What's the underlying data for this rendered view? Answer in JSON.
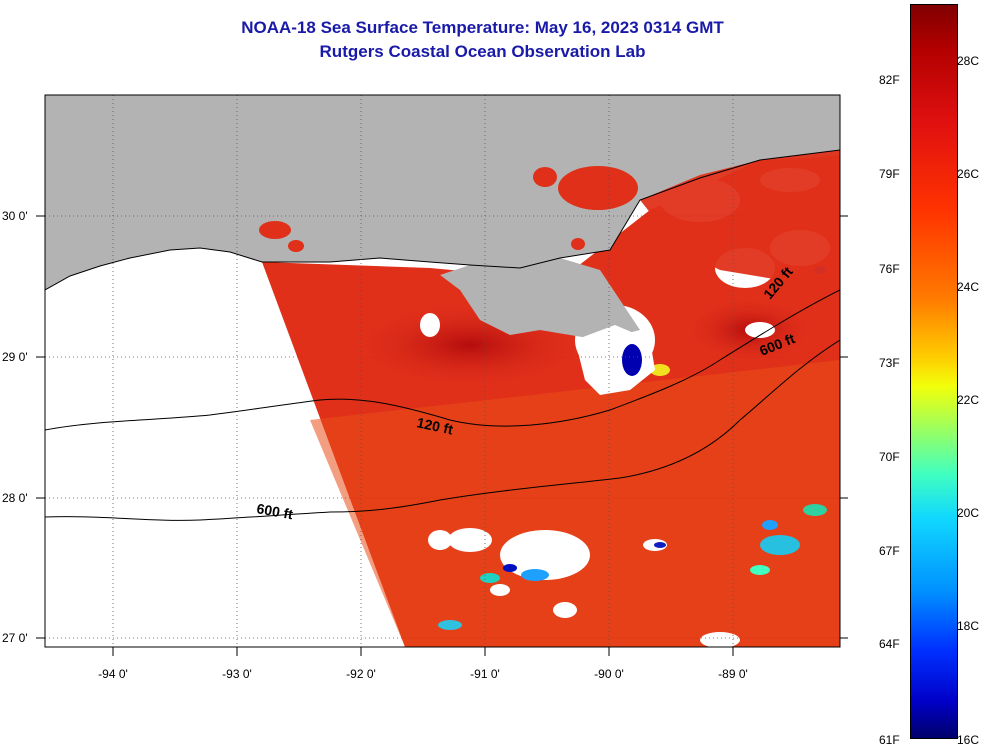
{
  "title": {
    "line1": "NOAA-18 Sea Surface Temperature:  May 16, 2023 0314 GMT",
    "line2": "Rutgers Coastal Ocean Observation Lab"
  },
  "map": {
    "lon_labels": [
      "-94 0'",
      "-93 0'",
      "-92 0'",
      "-91 0'",
      "-90 0'",
      "-89 0'"
    ],
    "lat_labels": [
      "30 0'",
      "29 0'",
      "28 0'",
      "27 0'"
    ],
    "contours": [
      "120 ft",
      "600 ft",
      "600 ft",
      "120 ft"
    ],
    "colors": {
      "land": "#b3b3b3",
      "water_warm": "#e0301a",
      "cloud": "#ffffff"
    }
  },
  "colorbar": {
    "fahrenheit": [
      "82F",
      "79F",
      "76F",
      "73F",
      "70F",
      "67F",
      "64F",
      "61F"
    ],
    "celsius": [
      "28C",
      "26C",
      "24C",
      "22C",
      "20C",
      "18C",
      "16C"
    ]
  }
}
